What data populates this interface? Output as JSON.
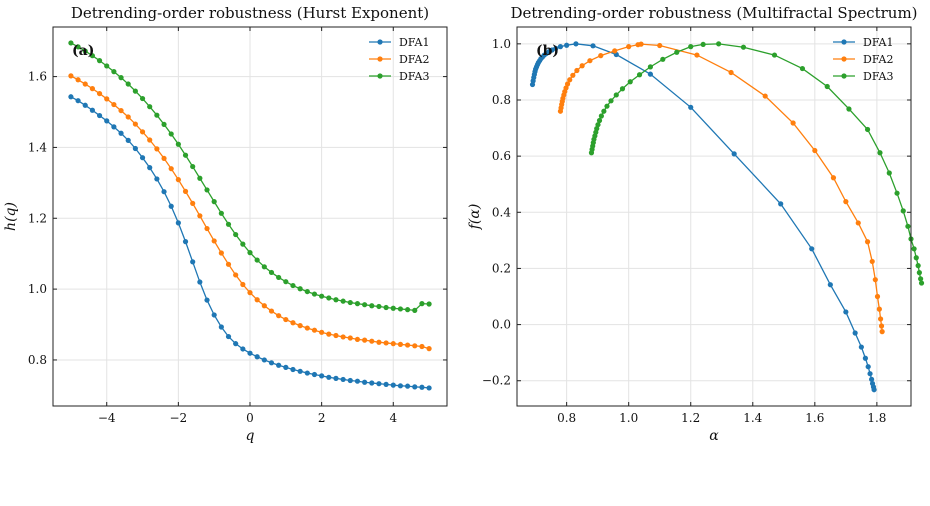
{
  "chart_data": [
    {
      "type": "line",
      "panel_label": "(a)",
      "title": "Detrending-order robustness (Hurst Exponent)",
      "xlabel": "q",
      "ylabel": "h(q)",
      "xlim": [
        -5.5,
        5.5
      ],
      "ylim": [
        0.67,
        1.74
      ],
      "xticks": [
        "−4",
        "−2",
        "0",
        "2",
        "4"
      ],
      "yticks": [
        "0.8",
        "1.0",
        "1.2",
        "1.4",
        "1.6"
      ],
      "grid": true,
      "legend": "top-right",
      "x": [
        -5.0,
        -4.8,
        -4.6,
        -4.4,
        -4.2,
        -4.0,
        -3.8,
        -3.6,
        -3.4,
        -3.2,
        -3.0,
        -2.8,
        -2.6,
        -2.4,
        -2.2,
        -2.0,
        -1.8,
        -1.6,
        -1.4,
        -1.2,
        -1.0,
        -0.8,
        -0.6,
        -0.4,
        -0.2,
        0.0,
        0.2,
        0.4,
        0.6,
        0.8,
        1.0,
        1.2,
        1.4,
        1.6,
        1.8,
        2.0,
        2.2,
        2.4,
        2.6,
        2.8,
        3.0,
        3.2,
        3.4,
        3.6,
        3.8,
        4.0,
        4.2,
        4.4,
        4.6,
        4.8,
        5.0
      ],
      "series": [
        {
          "name": "DFA1",
          "color": "#1f77b4",
          "values": [
            1.543,
            1.532,
            1.519,
            1.505,
            1.49,
            1.475,
            1.458,
            1.44,
            1.42,
            1.397,
            1.371,
            1.343,
            1.311,
            1.275,
            1.234,
            1.187,
            1.134,
            1.077,
            1.02,
            0.969,
            0.927,
            0.893,
            0.866,
            0.846,
            0.831,
            0.819,
            0.809,
            0.8,
            0.792,
            0.785,
            0.779,
            0.773,
            0.768,
            0.763,
            0.759,
            0.755,
            0.751,
            0.748,
            0.745,
            0.742,
            0.74,
            0.737,
            0.735,
            0.733,
            0.731,
            0.729,
            0.727,
            0.726,
            0.724,
            0.723,
            0.721
          ]
        },
        {
          "name": "DFA2",
          "color": "#ff7f0e",
          "values": [
            1.602,
            1.591,
            1.579,
            1.566,
            1.552,
            1.537,
            1.521,
            1.504,
            1.486,
            1.466,
            1.444,
            1.421,
            1.396,
            1.369,
            1.34,
            1.309,
            1.276,
            1.242,
            1.207,
            1.171,
            1.136,
            1.102,
            1.07,
            1.04,
            1.013,
            0.99,
            0.97,
            0.953,
            0.938,
            0.925,
            0.914,
            0.905,
            0.897,
            0.89,
            0.884,
            0.878,
            0.873,
            0.869,
            0.865,
            0.862,
            0.858,
            0.856,
            0.853,
            0.85,
            0.848,
            0.846,
            0.844,
            0.842,
            0.84,
            0.838,
            0.832
          ]
        },
        {
          "name": "DFA3",
          "color": "#2ca02c",
          "values": [
            1.695,
            1.684,
            1.672,
            1.659,
            1.645,
            1.63,
            1.614,
            1.597,
            1.579,
            1.559,
            1.538,
            1.515,
            1.491,
            1.465,
            1.438,
            1.409,
            1.378,
            1.346,
            1.313,
            1.28,
            1.247,
            1.214,
            1.183,
            1.154,
            1.127,
            1.103,
            1.082,
            1.063,
            1.047,
            1.033,
            1.021,
            1.01,
            1.001,
            0.993,
            0.986,
            0.98,
            0.975,
            0.97,
            0.966,
            0.962,
            0.959,
            0.956,
            0.953,
            0.951,
            0.948,
            0.946,
            0.944,
            0.942,
            0.94,
            0.959,
            0.958
          ]
        }
      ]
    },
    {
      "type": "line",
      "panel_label": "(b)",
      "title": "Detrending-order robustness (Multifractal Spectrum)",
      "xlabel": "α",
      "ylabel": "f(α)",
      "xlim": [
        0.64,
        1.91
      ],
      "ylim": [
        -0.29,
        1.06
      ],
      "xticks": [
        "0.8",
        "1.0",
        "1.2",
        "1.4",
        "1.6",
        "1.8"
      ],
      "yticks": [
        "−0.2",
        "0.0",
        "0.2",
        "0.4",
        "0.6",
        "0.8",
        "1.0"
      ],
      "grid": true,
      "legend": "top-right",
      "series": [
        {
          "name": "DFA1",
          "color": "#1f77b4",
          "points": [
            [
              0.69,
              0.855
            ],
            [
              0.692,
              0.868
            ],
            [
              0.694,
              0.88
            ],
            [
              0.696,
              0.891
            ],
            [
              0.698,
              0.901
            ],
            [
              0.7,
              0.91
            ],
            [
              0.703,
              0.918
            ],
            [
              0.706,
              0.926
            ],
            [
              0.709,
              0.933
            ],
            [
              0.713,
              0.94
            ],
            [
              0.717,
              0.947
            ],
            [
              0.722,
              0.953
            ],
            [
              0.728,
              0.96
            ],
            [
              0.735,
              0.966
            ],
            [
              0.743,
              0.972
            ],
            [
              0.753,
              0.978
            ],
            [
              0.765,
              0.984
            ],
            [
              0.78,
              0.99
            ],
            [
              0.8,
              0.995
            ],
            [
              0.83,
              1.0
            ],
            [
              0.885,
              0.993
            ],
            [
              0.96,
              0.962
            ],
            [
              1.07,
              0.892
            ],
            [
              1.2,
              0.774
            ],
            [
              1.34,
              0.608
            ],
            [
              1.49,
              0.43
            ],
            [
              1.59,
              0.27
            ],
            [
              1.65,
              0.142
            ],
            [
              1.7,
              0.045
            ],
            [
              1.73,
              -0.03
            ],
            [
              1.75,
              -0.08
            ],
            [
              1.763,
              -0.12
            ],
            [
              1.772,
              -0.15
            ],
            [
              1.778,
              -0.175
            ],
            [
              1.783,
              -0.195
            ],
            [
              1.786,
              -0.21
            ],
            [
              1.789,
              -0.222
            ],
            [
              1.791,
              -0.232
            ]
          ]
        },
        {
          "name": "DFA2",
          "color": "#ff7f0e",
          "points": [
            [
              0.78,
              0.76
            ],
            [
              0.782,
              0.772
            ],
            [
              0.784,
              0.784
            ],
            [
              0.786,
              0.795
            ],
            [
              0.788,
              0.806
            ],
            [
              0.791,
              0.818
            ],
            [
              0.794,
              0.83
            ],
            [
              0.798,
              0.843
            ],
            [
              0.803,
              0.857
            ],
            [
              0.81,
              0.872
            ],
            [
              0.82,
              0.888
            ],
            [
              0.833,
              0.905
            ],
            [
              0.85,
              0.922
            ],
            [
              0.875,
              0.94
            ],
            [
              0.91,
              0.958
            ],
            [
              0.955,
              0.975
            ],
            [
              1.0,
              0.99
            ],
            [
              1.03,
              0.997
            ],
            [
              1.04,
              0.999
            ],
            [
              1.1,
              0.994
            ],
            [
              1.22,
              0.96
            ],
            [
              1.33,
              0.898
            ],
            [
              1.44,
              0.814
            ],
            [
              1.53,
              0.718
            ],
            [
              1.6,
              0.62
            ],
            [
              1.66,
              0.523
            ],
            [
              1.7,
              0.438
            ],
            [
              1.74,
              0.362
            ],
            [
              1.77,
              0.295
            ],
            [
              1.785,
              0.225
            ],
            [
              1.795,
              0.16
            ],
            [
              1.802,
              0.1
            ],
            [
              1.808,
              0.055
            ],
            [
              1.812,
              0.02
            ],
            [
              1.815,
              -0.005
            ],
            [
              1.817,
              -0.025
            ]
          ]
        },
        {
          "name": "DFA3",
          "color": "#2ca02c",
          "points": [
            [
              0.88,
              0.612
            ],
            [
              0.882,
              0.624
            ],
            [
              0.884,
              0.636
            ],
            [
              0.886,
              0.648
            ],
            [
              0.888,
              0.66
            ],
            [
              0.891,
              0.672
            ],
            [
              0.894,
              0.685
            ],
            [
              0.897,
              0.698
            ],
            [
              0.901,
              0.712
            ],
            [
              0.906,
              0.727
            ],
            [
              0.912,
              0.743
            ],
            [
              0.92,
              0.76
            ],
            [
              0.93,
              0.778
            ],
            [
              0.943,
              0.797
            ],
            [
              0.96,
              0.818
            ],
            [
              0.98,
              0.84
            ],
            [
              1.005,
              0.865
            ],
            [
              1.035,
              0.89
            ],
            [
              1.07,
              0.918
            ],
            [
              1.11,
              0.945
            ],
            [
              1.155,
              0.97
            ],
            [
              1.2,
              0.99
            ],
            [
              1.24,
              0.998
            ],
            [
              1.29,
              1.0
            ],
            [
              1.37,
              0.988
            ],
            [
              1.47,
              0.96
            ],
            [
              1.56,
              0.912
            ],
            [
              1.64,
              0.848
            ],
            [
              1.71,
              0.768
            ],
            [
              1.77,
              0.695
            ],
            [
              1.81,
              0.612
            ],
            [
              1.84,
              0.54
            ],
            [
              1.865,
              0.468
            ],
            [
              1.885,
              0.405
            ],
            [
              1.9,
              0.35
            ],
            [
              1.91,
              0.305
            ],
            [
              1.92,
              0.27
            ],
            [
              1.927,
              0.238
            ],
            [
              1.933,
              0.21
            ],
            [
              1.937,
              0.185
            ],
            [
              1.941,
              0.163
            ],
            [
              1.944,
              0.148
            ]
          ]
        }
      ]
    }
  ]
}
